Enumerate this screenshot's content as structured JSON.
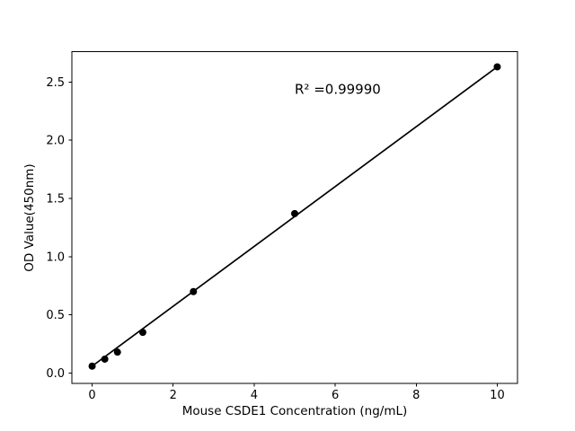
{
  "chart_data": {
    "type": "scatter",
    "title": "",
    "xlabel": "Mouse CSDE1 Concentration (ng/mL)",
    "ylabel": "OD Value(450nm)",
    "annotation": "R² =0.99990",
    "annotation_position": {
      "x": 5,
      "y": 2.4
    },
    "x": [
      0,
      0.3125,
      0.625,
      1.25,
      2.5,
      5,
      10
    ],
    "y": [
      0.06,
      0.12,
      0.18,
      0.35,
      0.7,
      1.37,
      2.63
    ],
    "trendline": {
      "x": [
        0,
        10
      ],
      "y": [
        0.06,
        2.63
      ]
    },
    "xlim": [
      -0.5,
      10.5
    ],
    "ylim": [
      -0.09,
      2.76
    ],
    "xticks": {
      "values": [
        0,
        2,
        4,
        6,
        8,
        10
      ],
      "labels": [
        "0",
        "2",
        "4",
        "6",
        "8",
        "10"
      ]
    },
    "yticks": {
      "values": [
        0,
        0.5,
        1,
        1.5,
        2,
        2.5
      ],
      "labels": [
        "0.0",
        "0.5",
        "1.0",
        "1.5",
        "2.0",
        "2.5"
      ]
    },
    "grid": false,
    "legend_position": "none",
    "marker": "circle",
    "colors": {
      "points": "#000000",
      "line": "#000000",
      "text": "#000000",
      "frame": "#000000",
      "background": "#ffffff"
    }
  }
}
